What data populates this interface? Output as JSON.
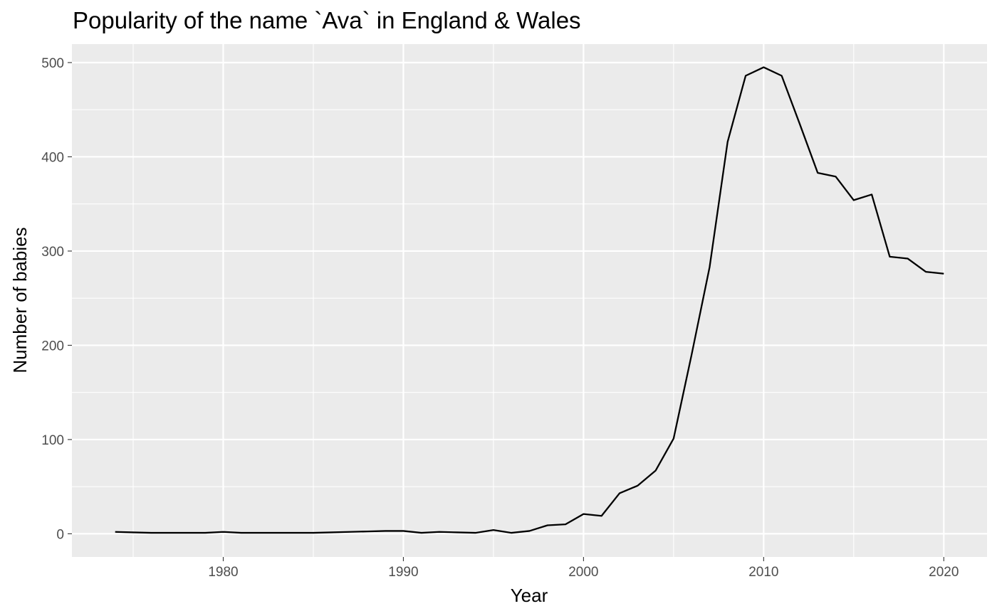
{
  "chart_data": {
    "type": "line",
    "title": "Popularity of the name `Ava` in England & Wales",
    "xlabel": "Year",
    "ylabel": "Number of babies",
    "xlim": [
      1971.6,
      2022.4
    ],
    "ylim": [
      -24.6,
      519.6
    ],
    "x_ticks": [
      1980,
      1990,
      2000,
      2010,
      2020
    ],
    "x_minor_ticks": [
      1975,
      1985,
      1995,
      2005,
      2015
    ],
    "y_ticks": [
      0,
      100,
      200,
      300,
      400,
      500
    ],
    "y_minor_ticks": [
      50,
      150,
      250,
      350,
      450
    ],
    "x_tick_labels": [
      "1980",
      "1990",
      "2000",
      "2010",
      "2020"
    ],
    "y_tick_labels": [
      "0",
      "100",
      "200",
      "300",
      "400",
      "500"
    ],
    "grid": true,
    "legend": "none",
    "colors": {
      "panel": "#ebebeb",
      "grid": "#ffffff",
      "line": "#000000",
      "tick_text": "#4d4d4d"
    },
    "series": [
      {
        "x": [
          1974,
          1975,
          1976,
          1977,
          1978,
          1979,
          1980,
          1981,
          1982,
          1983,
          1984,
          1985,
          1986,
          1987,
          1988,
          1989,
          1990,
          1991,
          1992,
          1993,
          1994,
          1995,
          1996,
          1997,
          1998,
          1999,
          2000,
          2001,
          2002,
          2003,
          2004,
          2005,
          2006,
          2007,
          2008,
          2009,
          2010,
          2011,
          2012,
          2013,
          2014,
          2015,
          2016,
          2017,
          2018,
          2019,
          2020
        ],
        "y": [
          2,
          1.5,
          1,
          1,
          1,
          1,
          2,
          1,
          1,
          1,
          1,
          1,
          1.5,
          2,
          2.5,
          3,
          3,
          1,
          2,
          1.5,
          1,
          4,
          1,
          3,
          9,
          10,
          21,
          19,
          43,
          51,
          67,
          101,
          190,
          283,
          416,
          486,
          495,
          486,
          435,
          383,
          379,
          354,
          360,
          294,
          292,
          278,
          276
        ]
      }
    ]
  }
}
